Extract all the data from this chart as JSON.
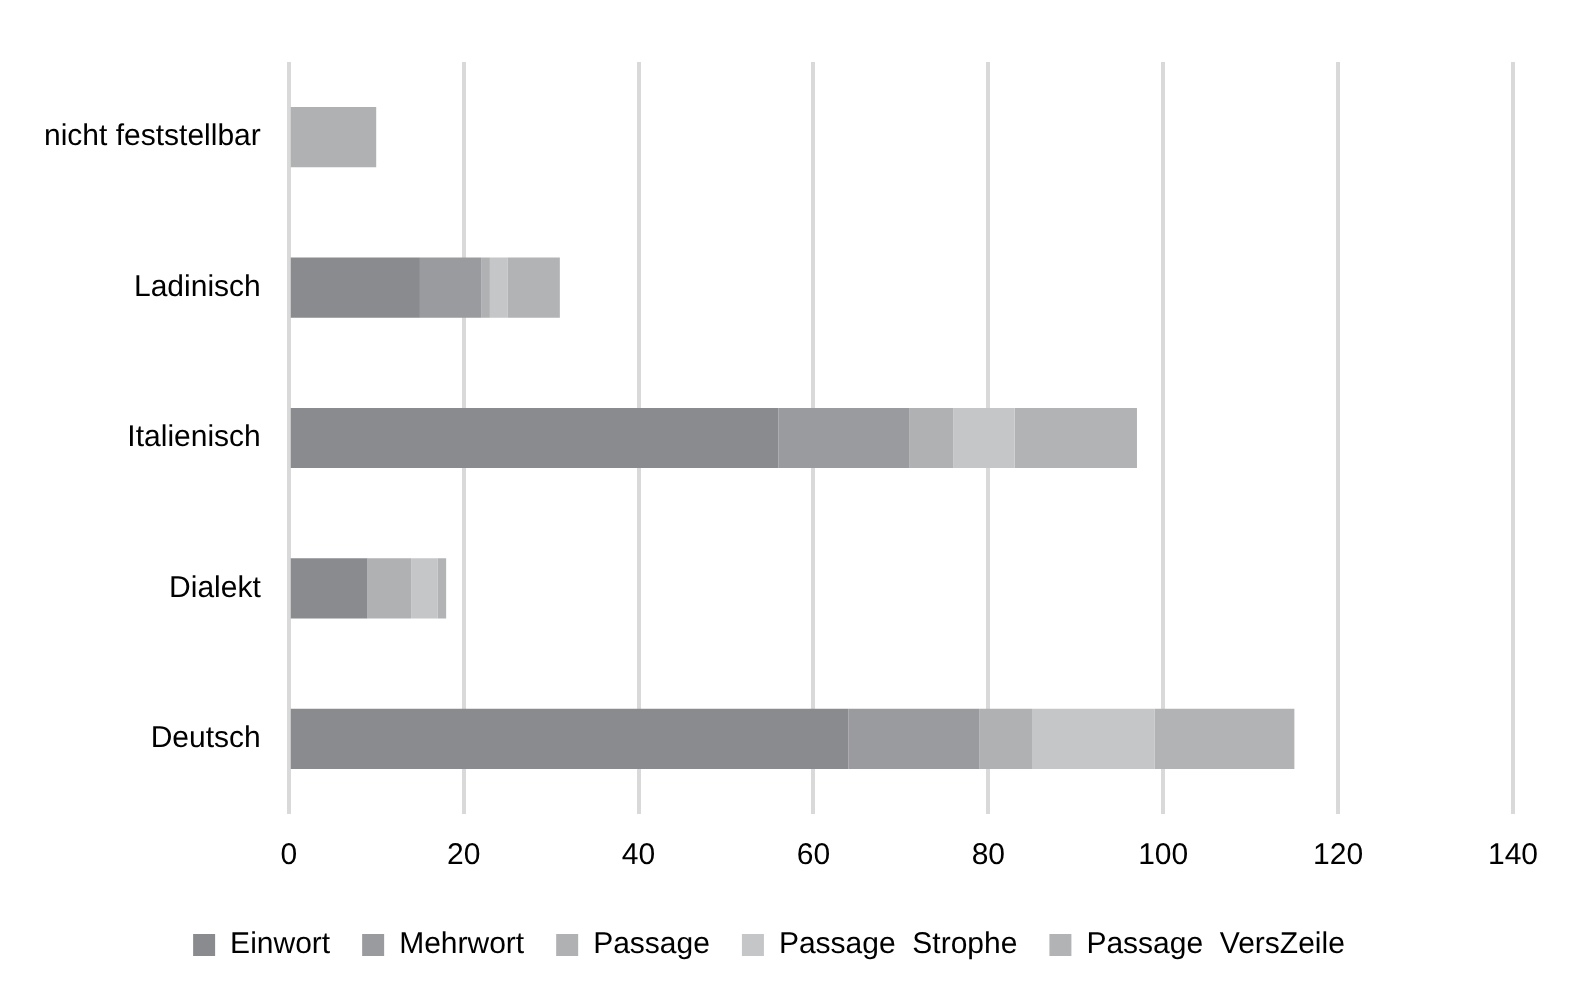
{
  "chart_data": {
    "type": "bar",
    "orientation": "horizontal",
    "stacked": true,
    "categories": [
      "nicht feststellbar",
      "Ladinisch",
      "Italienisch",
      "Dialekt",
      "Deutsch"
    ],
    "series": [
      {
        "name": "Einwort",
        "color": "#8a8b8f",
        "values": [
          0,
          15,
          56,
          9,
          64
        ]
      },
      {
        "name": "Mehrwort",
        "color": "#9a9b9f",
        "values": [
          0,
          7,
          15,
          0,
          15
        ]
      },
      {
        "name": "Passage",
        "color": "#b0b1b3",
        "values": [
          10,
          1,
          5,
          5,
          6
        ]
      },
      {
        "name": "Passage  Strophe",
        "color": "#c5c6c8",
        "values": [
          0,
          2,
          7,
          3,
          14
        ]
      },
      {
        "name": "Passage  VersZeile",
        "color": "#b2b3b5",
        "values": [
          0,
          6,
          14,
          1,
          16
        ]
      }
    ],
    "xlim": [
      0,
      140
    ],
    "xticks": [
      0,
      20,
      40,
      60,
      80,
      100,
      120,
      140
    ],
    "grid": "x",
    "legend": "bottom"
  }
}
